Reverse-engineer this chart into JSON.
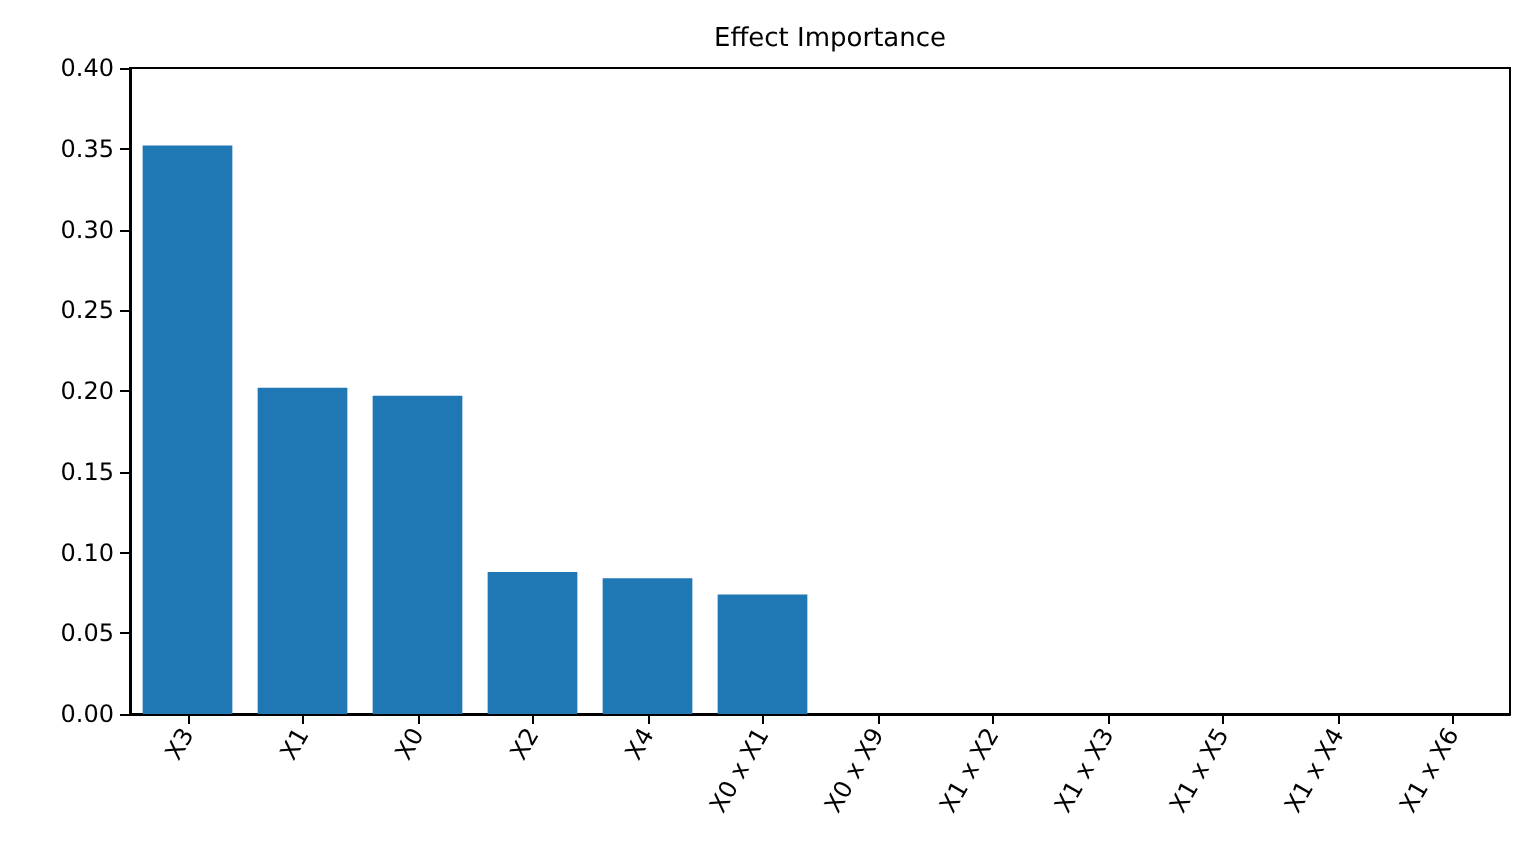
{
  "chart_data": {
    "type": "bar",
    "title": "Effect Importance",
    "categories": [
      "X3",
      "X1",
      "X0",
      "X2",
      "X4",
      "X0 x X1",
      "X0 x X9",
      "X1 x X2",
      "X1 x X3",
      "X1 x X5",
      "X1 x X4",
      "X1 x X6"
    ],
    "values": [
      0.352,
      0.202,
      0.197,
      0.088,
      0.084,
      0.074,
      0,
      0,
      0,
      0,
      0,
      0
    ],
    "color": "#1f77b4",
    "ylim": [
      0,
      0.4
    ],
    "yticks": [
      {
        "value": 0,
        "label": "0.00"
      },
      {
        "value": 0.05,
        "label": "0.05"
      },
      {
        "value": 0.1,
        "label": "0.10"
      },
      {
        "value": 0.15,
        "label": "0.15"
      },
      {
        "value": 0.2,
        "label": "0.20"
      },
      {
        "value": 0.25,
        "label": "0.25"
      },
      {
        "value": 0.3,
        "label": "0.30"
      },
      {
        "value": 0.35,
        "label": "0.35"
      },
      {
        "value": 0.4,
        "label": "0.40"
      }
    ],
    "grid": false
  }
}
